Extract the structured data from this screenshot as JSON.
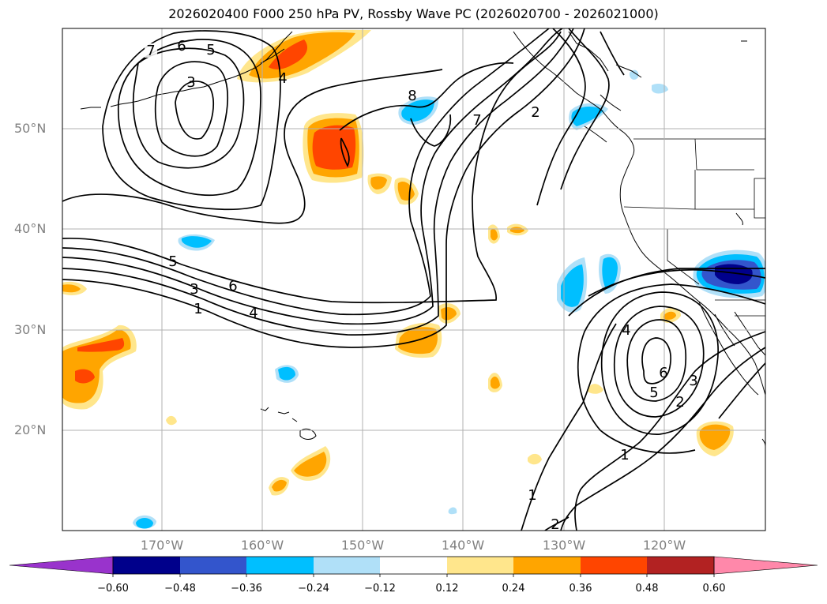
{
  "title": "2026020400 F000 250 hPa PV, Rossby Wave PC (2026020700 - 2026021000)",
  "map": {
    "lat_labels": [
      "50°N",
      "40°N",
      "30°N",
      "20°N"
    ],
    "lon_labels": [
      "170°W",
      "160°W",
      "150°W",
      "140°W",
      "130°W",
      "120°W"
    ],
    "contour_labels": [
      {
        "id": "c7a",
        "text": "7"
      },
      {
        "id": "c6a",
        "text": "6"
      },
      {
        "id": "c5a",
        "text": "5"
      },
      {
        "id": "c3a",
        "text": "3"
      },
      {
        "id": "c4a",
        "text": "4"
      },
      {
        "id": "c8a",
        "text": "8"
      },
      {
        "id": "c7b",
        "text": "7"
      },
      {
        "id": "c2a",
        "text": "2"
      },
      {
        "id": "c5b",
        "text": "5"
      },
      {
        "id": "c6b",
        "text": "6"
      },
      {
        "id": "c3b",
        "text": "3"
      },
      {
        "id": "c4b",
        "text": "4"
      },
      {
        "id": "c1a",
        "text": "1"
      },
      {
        "id": "c4c",
        "text": "4"
      },
      {
        "id": "c6c",
        "text": "6"
      },
      {
        "id": "c5c",
        "text": "5"
      },
      {
        "id": "c3c",
        "text": "3"
      },
      {
        "id": "c2b",
        "text": "2"
      },
      {
        "id": "c1b",
        "text": "1"
      },
      {
        "id": "c1c",
        "text": "1"
      },
      {
        "id": "c2c",
        "text": "2"
      }
    ]
  },
  "colorbar": {
    "ticks": [
      "−0.60",
      "−0.48",
      "−0.36",
      "−0.24",
      "−0.12",
      "0.12",
      "0.24",
      "0.36",
      "0.48",
      "0.60"
    ],
    "colors": [
      "#9933cc",
      "#00008b",
      "#3355cc",
      "#00bfff",
      "#b0e0f8",
      "#ffffff",
      "#ffe68c",
      "#ffa500",
      "#ff4500",
      "#b22222",
      "#ff88aa"
    ]
  }
}
